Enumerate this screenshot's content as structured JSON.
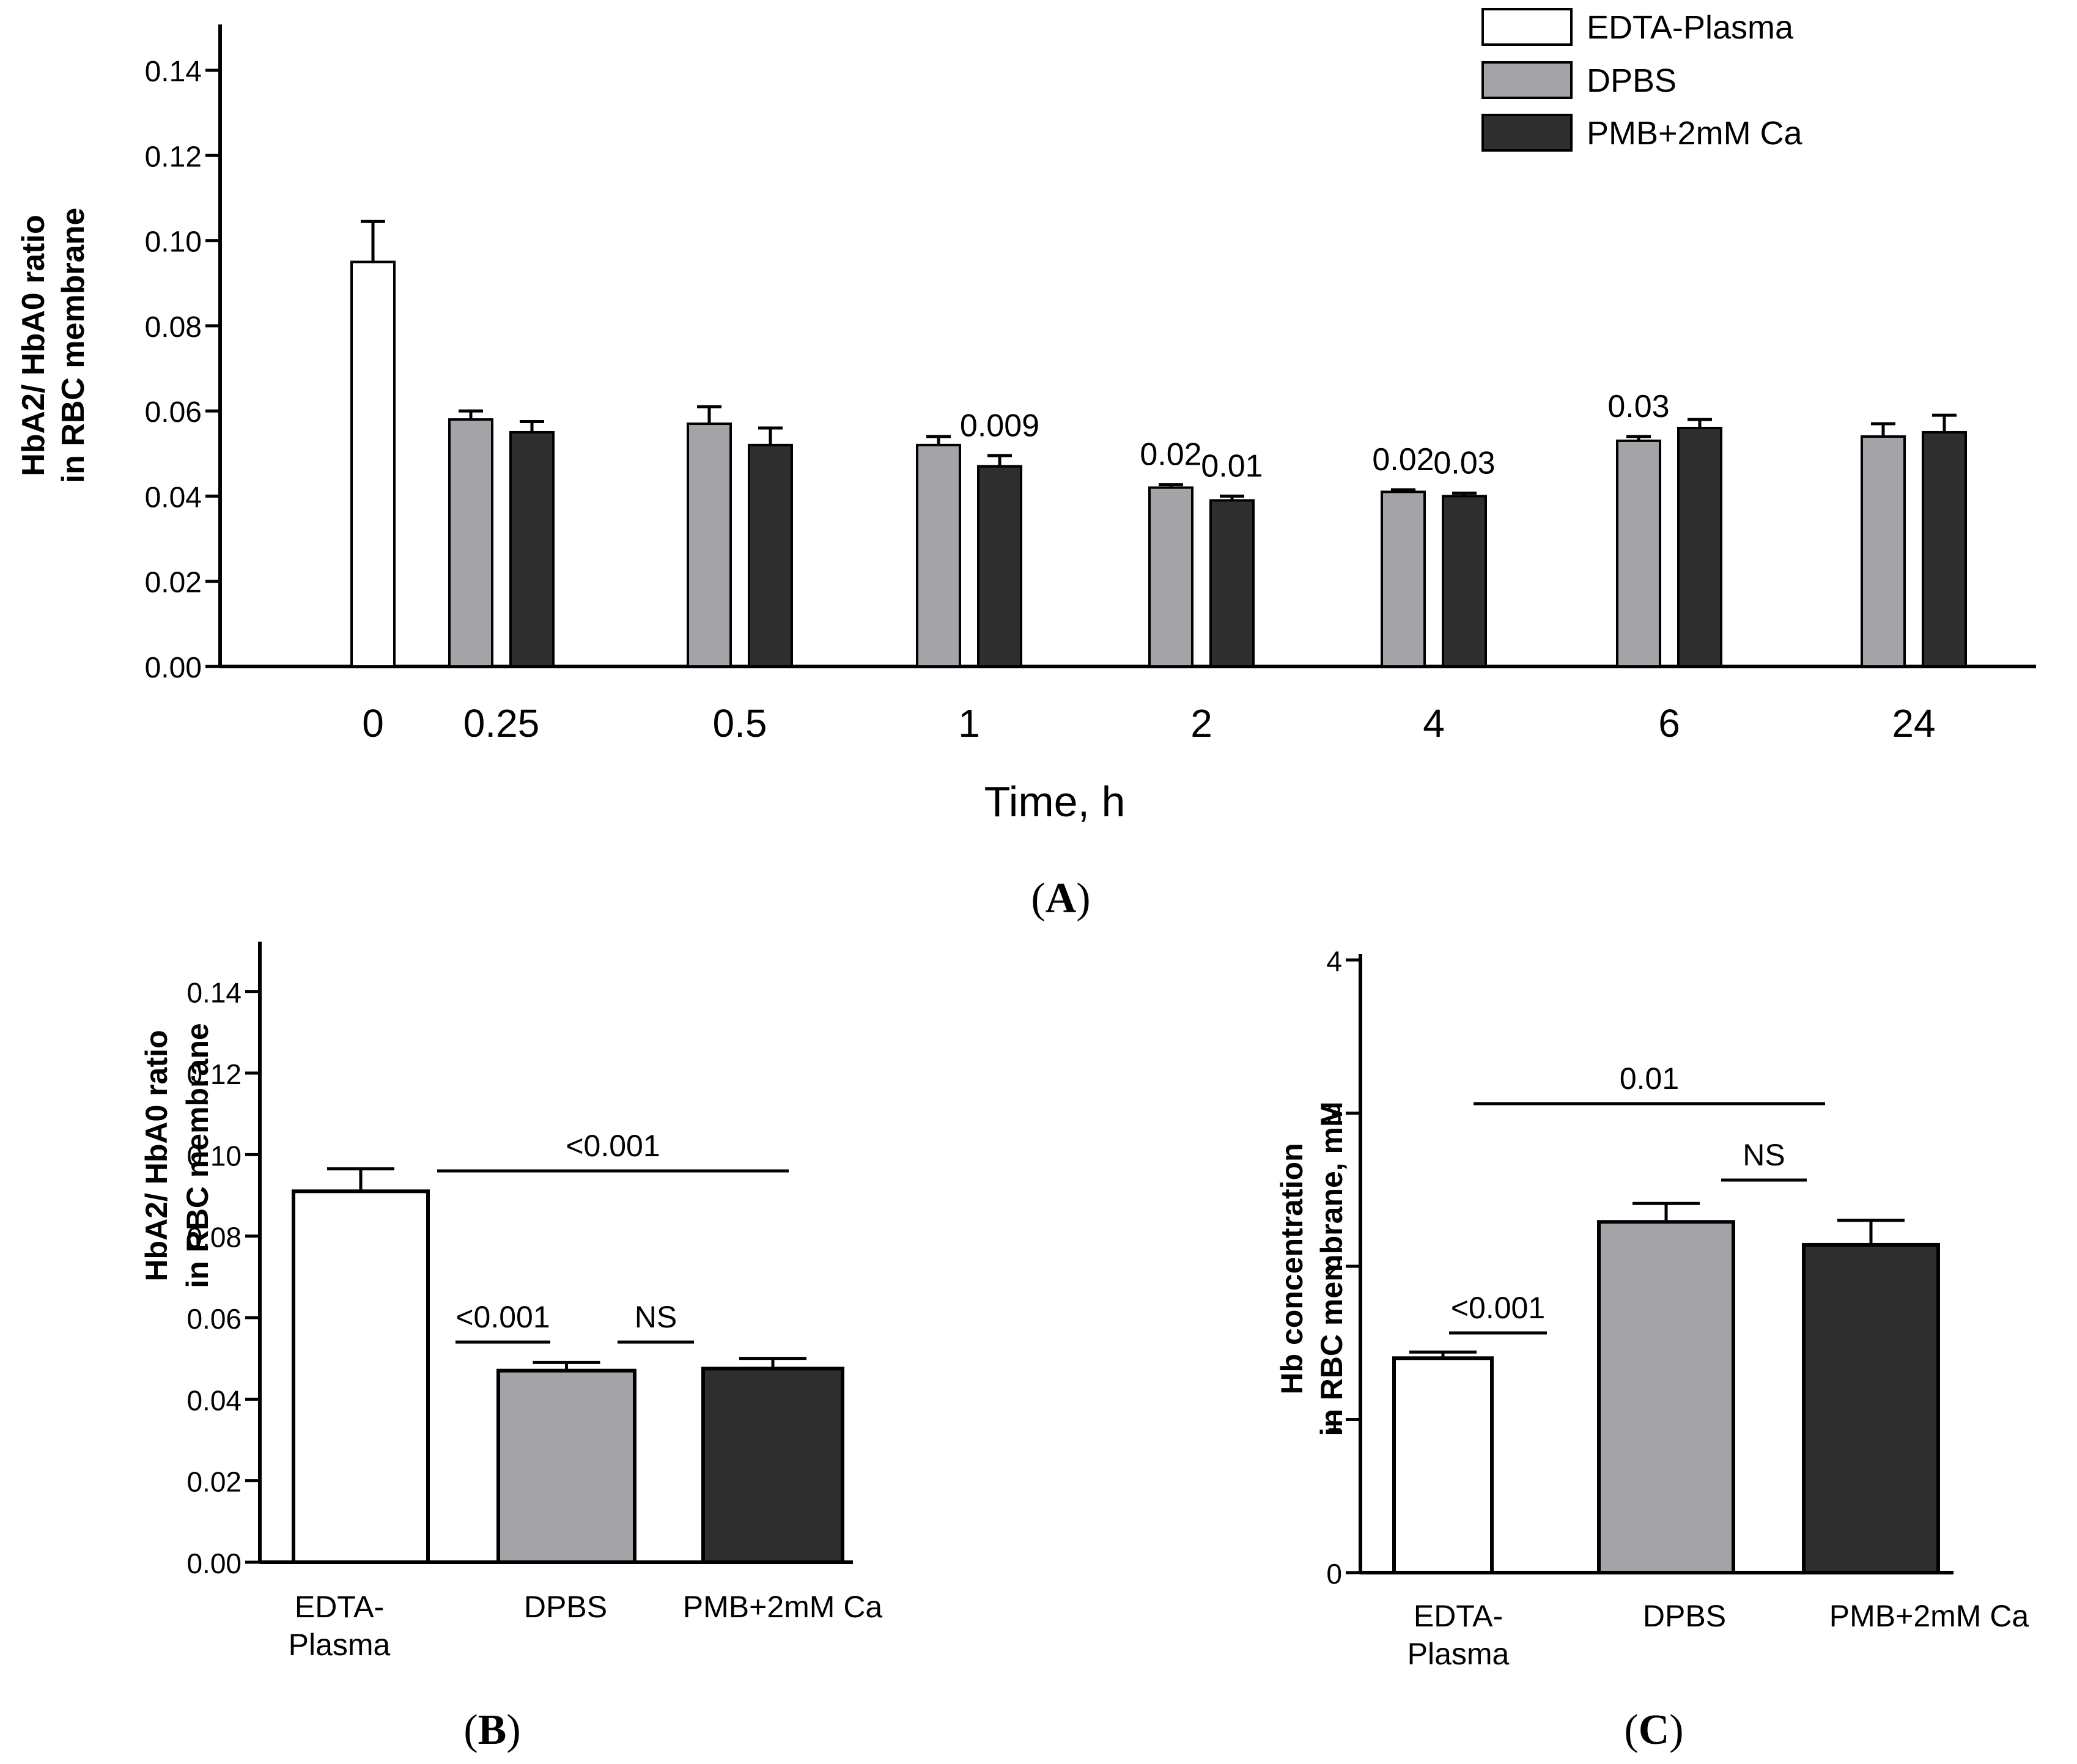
{
  "colors": {
    "edta": "#ffffff",
    "dpbs": "#a4a4a8",
    "pmb": "#2e2e2e",
    "axis": "#000000"
  },
  "legend": {
    "placement": "top-right",
    "items": [
      "EDTA-Plasma",
      "DPBS",
      "PMB+2mM Ca"
    ]
  },
  "panels": {
    "a": "A",
    "b": "B",
    "c": "C"
  },
  "chart_data": [
    {
      "id": "A",
      "type": "bar",
      "categories": [
        "0",
        "0.25",
        "0.5",
        "1",
        "2",
        "4",
        "6",
        "24"
      ],
      "xlabel": "Time, h",
      "ylabel": [
        "HbA2/ HbA0 ratio",
        "in RBC membrane"
      ],
      "ylim": [
        0,
        0.14
      ],
      "yticks": [
        0.0,
        0.02,
        0.04,
        0.06,
        0.08,
        0.1,
        0.12,
        0.14
      ],
      "ytick_decimals": 2,
      "series": [
        {
          "name": "EDTA-Plasma",
          "values": [
            0.095,
            null,
            null,
            null,
            null,
            null,
            null,
            null
          ],
          "errors": [
            0.0095,
            null,
            null,
            null,
            null,
            null,
            null,
            null
          ]
        },
        {
          "name": "DPBS",
          "values": [
            null,
            0.058,
            0.057,
            0.052,
            0.042,
            0.041,
            0.053,
            0.054
          ],
          "errors": [
            null,
            0.002,
            0.004,
            0.002,
            0.0007,
            0.0005,
            0.001,
            0.003
          ]
        },
        {
          "name": "PMB+2mM Ca",
          "values": [
            null,
            0.055,
            0.052,
            0.047,
            0.039,
            0.04,
            0.056,
            0.055
          ],
          "errors": [
            null,
            0.0025,
            0.004,
            0.0025,
            0.001,
            0.0007,
            0.002,
            0.004
          ]
        }
      ],
      "annotations": [
        {
          "category": "1",
          "series": "PMB+2mM Ca",
          "text": "0.009"
        },
        {
          "category": "2",
          "series": "DPBS",
          "text": "0.02"
        },
        {
          "category": "2",
          "series": "PMB+2mM Ca",
          "text": "0.01"
        },
        {
          "category": "4",
          "series": "DPBS",
          "text": "0.02"
        },
        {
          "category": "4",
          "series": "PMB+2mM Ca",
          "text": "0.03"
        },
        {
          "category": "6",
          "series": "DPBS",
          "text": "0.03"
        }
      ]
    },
    {
      "id": "B",
      "type": "bar",
      "categories": [
        "EDTA-Plasma",
        "DPBS",
        "PMB+2mM Ca"
      ],
      "category_lines": [
        [
          "EDTA-",
          "Plasma"
        ],
        [
          "DPBS"
        ],
        [
          "PMB+2mM Ca"
        ]
      ],
      "ylabel": [
        "HbA2/ HbA0 ratio",
        "in RBC membrane"
      ],
      "ylim": [
        0,
        0.15
      ],
      "yticks": [
        0.0,
        0.02,
        0.04,
        0.06,
        0.08,
        0.1,
        0.12,
        0.14
      ],
      "ytick_decimals": 2,
      "values": [
        0.091,
        0.047,
        0.0475
      ],
      "errors": [
        0.0055,
        0.002,
        0.0025
      ],
      "brackets": [
        {
          "from": 0,
          "to": 2,
          "text": "<0.001"
        },
        {
          "from": 0,
          "to": 1,
          "text": "<0.001"
        },
        {
          "from": 1,
          "to": 2,
          "text": "NS"
        }
      ]
    },
    {
      "id": "C",
      "type": "bar",
      "categories": [
        "EDTA-Plasma",
        "DPBS",
        "PMB+2mM Ca"
      ],
      "category_lines": [
        [
          "EDTA-",
          "Plasma"
        ],
        [
          "DPBS"
        ],
        [
          "PMB+2mM Ca"
        ]
      ],
      "ylabel": [
        "Hb concentration",
        "in RBC membrane, mM"
      ],
      "ylim": [
        0,
        4
      ],
      "yticks": [
        0,
        1,
        2,
        3,
        4
      ],
      "ytick_decimals": 0,
      "values": [
        1.4,
        2.29,
        2.14
      ],
      "errors": [
        0.04,
        0.12,
        0.16
      ],
      "brackets": [
        {
          "from": 0,
          "to": 2,
          "text": "0.01"
        },
        {
          "from": 0,
          "to": 1,
          "text": "<0.001"
        },
        {
          "from": 1,
          "to": 2,
          "text": "NS"
        }
      ]
    }
  ]
}
